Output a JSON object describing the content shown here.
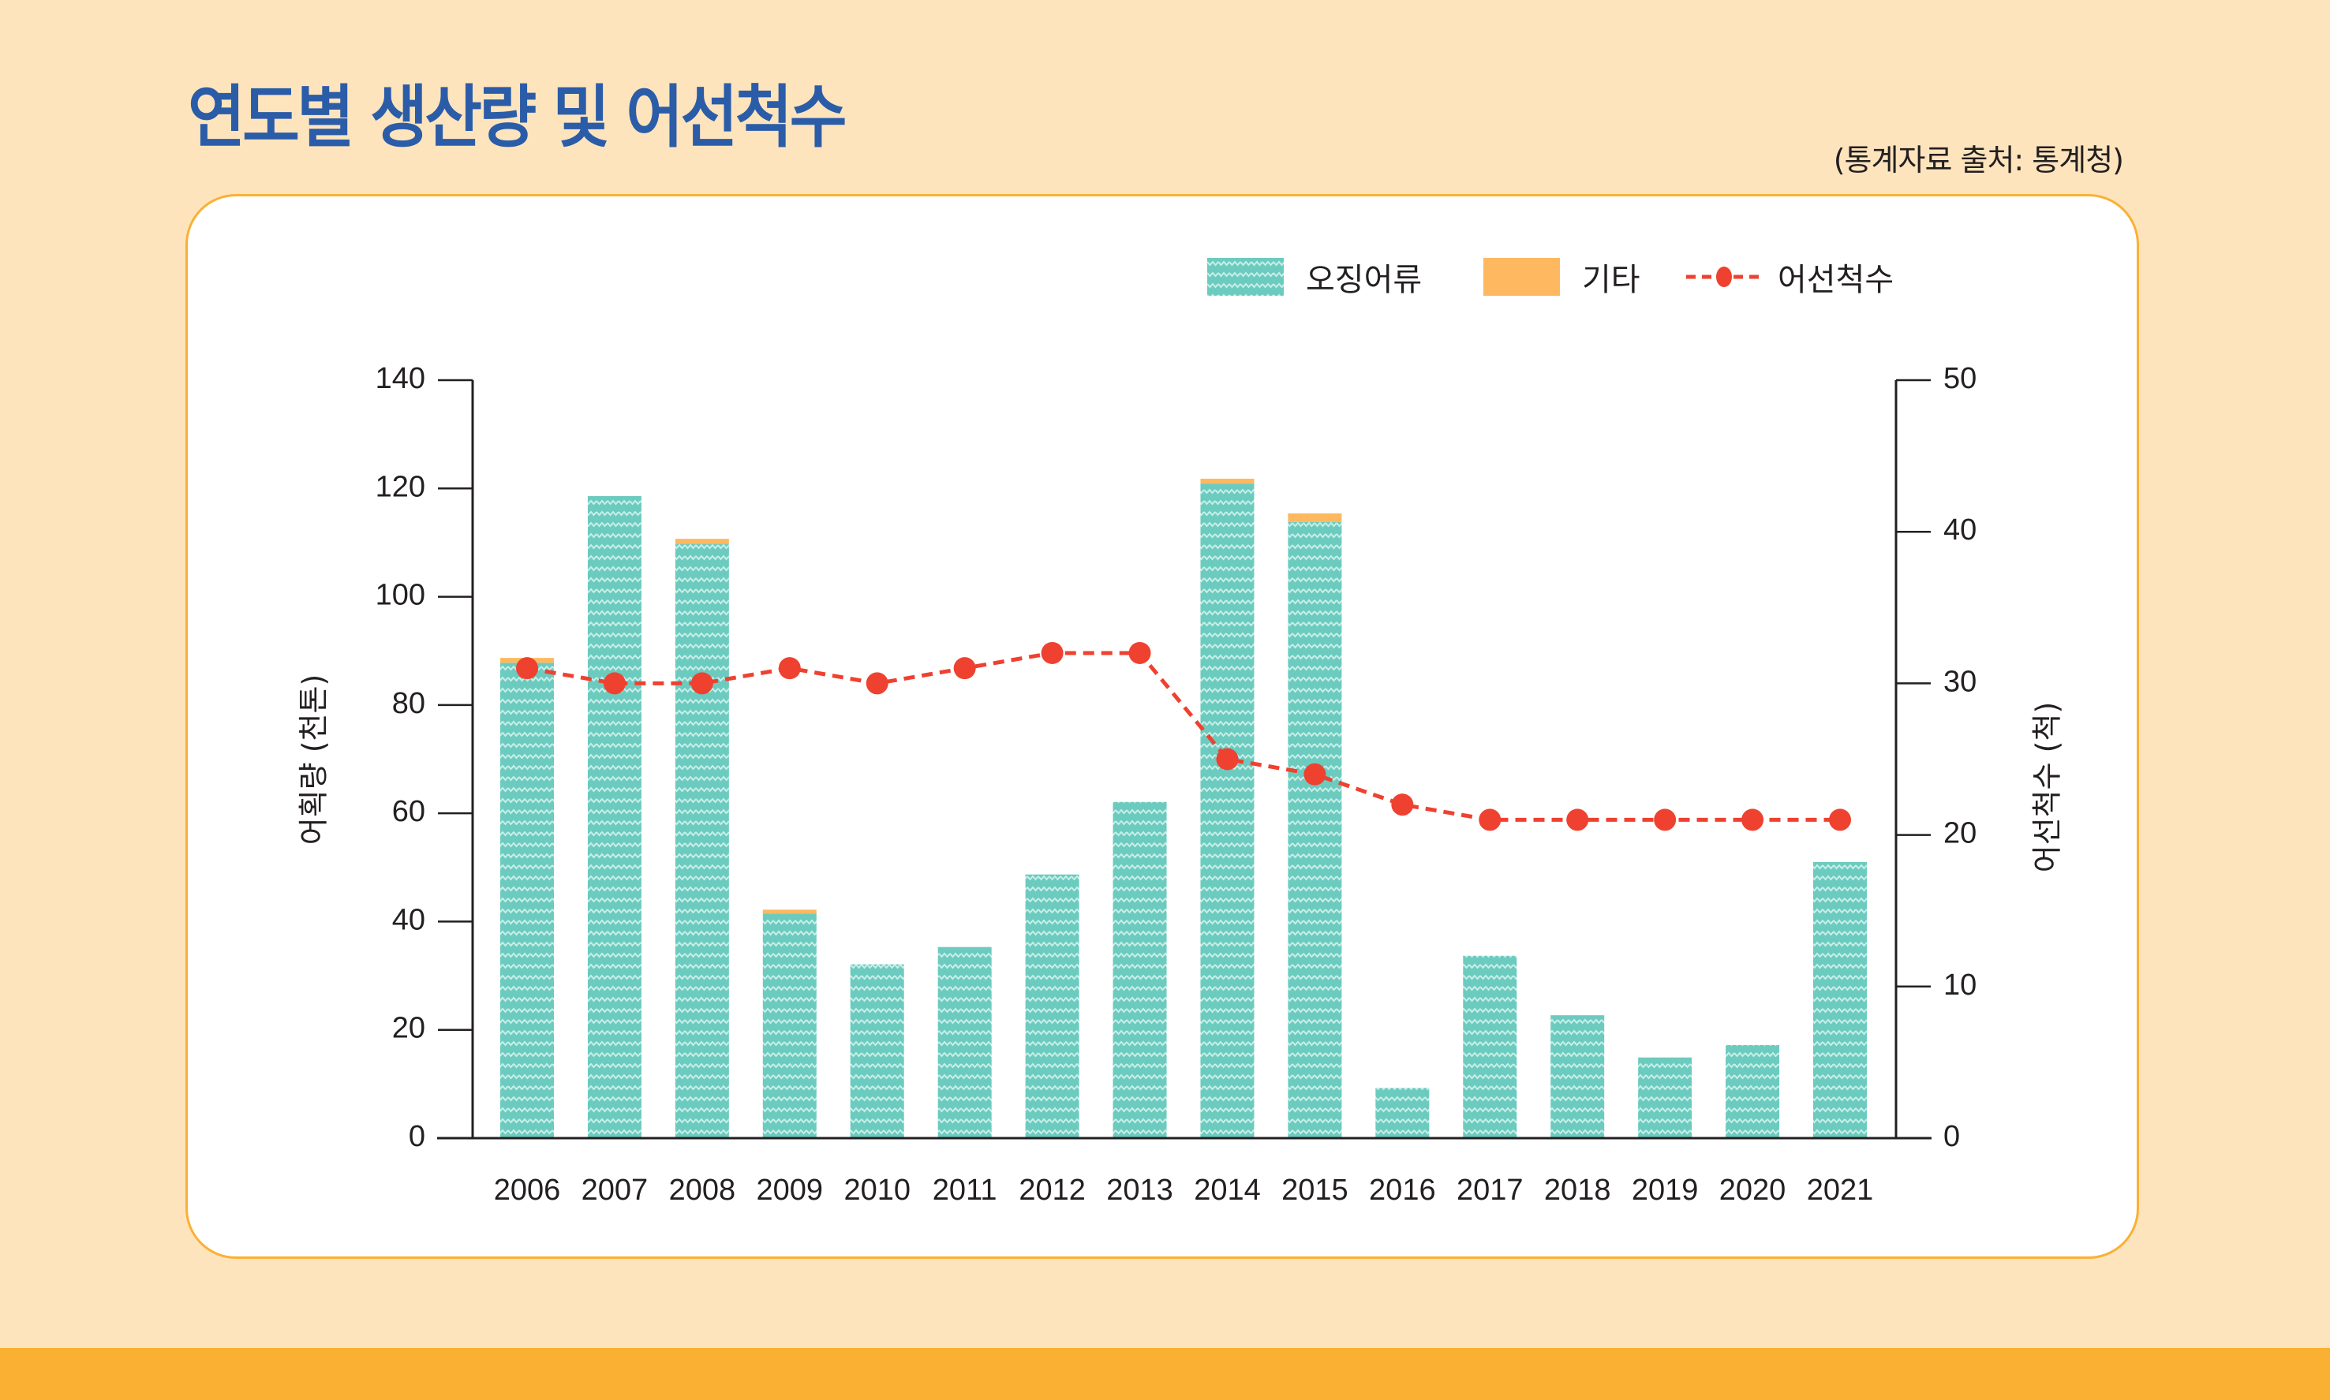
{
  "header": {
    "title": "연도별 생산량 및 어선척수",
    "source": "(통계자료 출처: 통계청)"
  },
  "colors": {
    "background": "#fee4bd",
    "title": "#2b5ca8",
    "card_border": "#fbb034",
    "bottom_band": "#fab033",
    "squid": "#6ccbbf",
    "squid_pattern": "#c9eee9",
    "other": "#fdb860",
    "vessels": "#ef4130",
    "axis": "#231f20"
  },
  "chart_data": {
    "type": "bar",
    "title": "연도별 생산량 및 어선척수",
    "stacked": true,
    "categories": [
      "2006",
      "2007",
      "2008",
      "2009",
      "2010",
      "2011",
      "2012",
      "2013",
      "2014",
      "2015",
      "2016",
      "2017",
      "2018",
      "2019",
      "2020",
      "2021"
    ],
    "series": [
      {
        "name": "오징어류",
        "type": "bar",
        "axis": "left",
        "values": [
          87.8,
          118.6,
          109.8,
          41.5,
          32.1,
          35.3,
          48.7,
          62.1,
          120.9,
          113.8,
          9.3,
          33.7,
          22.7,
          14.9,
          17.2,
          51.0
        ]
      },
      {
        "name": "기타",
        "type": "bar",
        "axis": "left",
        "values": [
          0.9,
          0,
          0.9,
          0.7,
          0,
          0,
          0,
          0,
          0.9,
          1.6,
          0,
          0,
          0,
          0,
          0,
          0
        ]
      },
      {
        "name": "어선척수",
        "type": "line",
        "axis": "right",
        "style": "dashed-with-markers",
        "values": [
          31,
          30,
          30,
          31,
          30,
          31,
          32,
          32,
          25,
          24,
          22,
          21,
          21,
          21,
          21,
          21
        ]
      }
    ],
    "ylabel": "어획량 (천톤)",
    "ylim": [
      0,
      140
    ],
    "yticks": [
      "0",
      "20",
      "40",
      "60",
      "80",
      "100",
      "120",
      "140"
    ],
    "y2label": "어선척수 (척)",
    "y2lim": [
      0,
      50
    ],
    "y2ticks": [
      "0",
      "10",
      "20",
      "30",
      "40",
      "50"
    ],
    "xlabel": "",
    "grid": false,
    "legend_position": "top-right",
    "legend": [
      "오징어류",
      "기타",
      "어선척수"
    ]
  }
}
